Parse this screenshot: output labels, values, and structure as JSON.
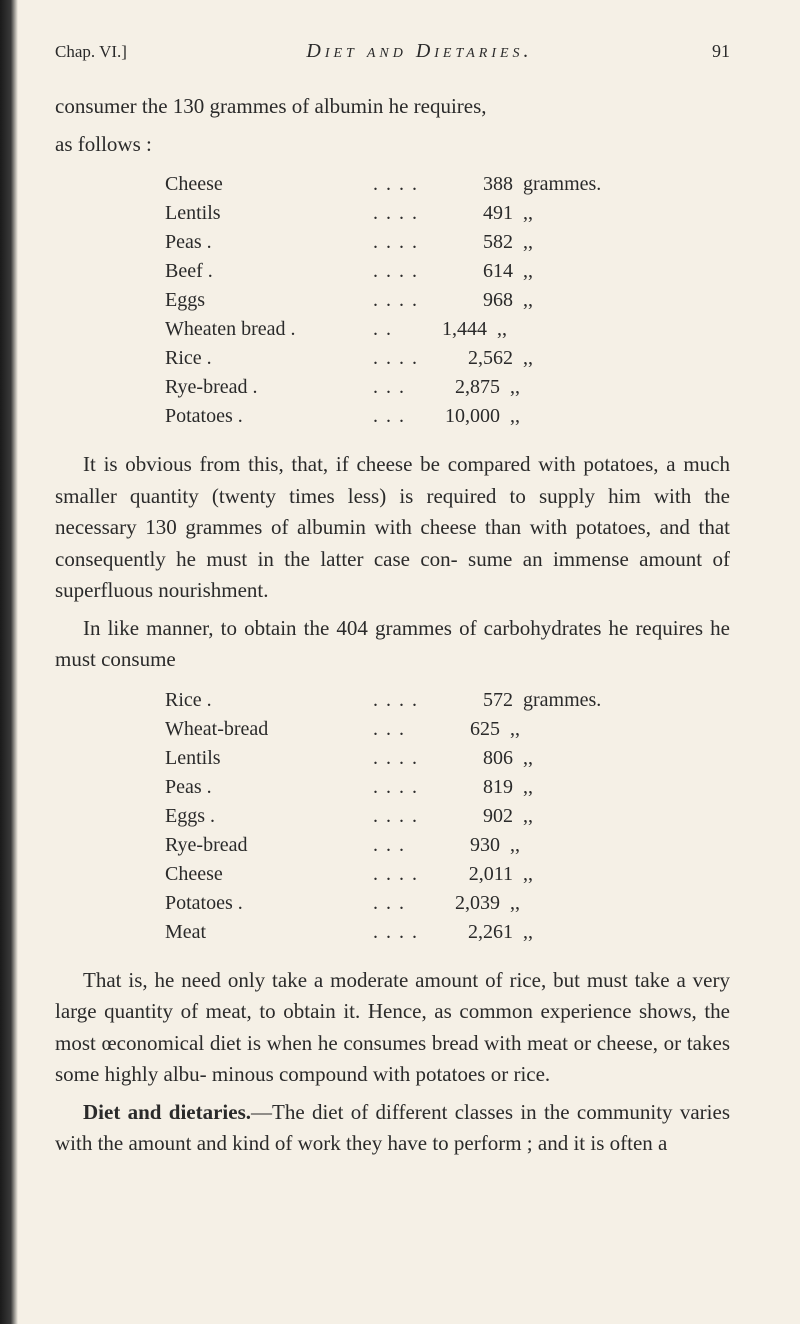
{
  "header": {
    "chapter": "Chap. VI.]",
    "title": "Diet and Dietaries.",
    "page": "91"
  },
  "para1a": "consumer the 130 grammes of albumin he requires,",
  "para1b": "as follows :",
  "table1": {
    "rows": [
      {
        "label": "Cheese",
        "dots": "....",
        "value": "388",
        "unit": "grammes."
      },
      {
        "label": "Lentils",
        "dots": "....",
        "value": "491",
        "unit": ",,"
      },
      {
        "label": "Peas .",
        "dots": "....",
        "value": "582",
        "unit": ",,"
      },
      {
        "label": "Beef .",
        "dots": "....",
        "value": "614",
        "unit": ",,"
      },
      {
        "label": "Eggs",
        "dots": "....",
        "value": "968",
        "unit": ",,"
      },
      {
        "label": "Wheaten bread .",
        "dots": "..",
        "value": "1,444",
        "unit": ",,"
      },
      {
        "label": "Rice .",
        "dots": "....",
        "value": "2,562",
        "unit": ",,"
      },
      {
        "label": "Rye-bread .",
        "dots": "...",
        "value": "2,875",
        "unit": ",,"
      },
      {
        "label": "Potatoes .",
        "dots": "...",
        "value": "10,000",
        "unit": ",,"
      }
    ]
  },
  "para2": "It is obvious from this, that, if cheese be compared with potatoes, a much smaller quantity (twenty times less) is required to supply him with the necessary 130 grammes of albumin with cheese than with potatoes, and that consequently he must in the latter case con- sume an immense amount of superfluous nourishment.",
  "para3": "In like manner, to obtain the 404 grammes of carbohydrates he requires he must consume",
  "table2": {
    "rows": [
      {
        "label": "Rice .",
        "dots": "....",
        "value": "572",
        "unit": "grammes."
      },
      {
        "label": "Wheat-bread",
        "dots": "...",
        "value": "625",
        "unit": ",,"
      },
      {
        "label": "Lentils",
        "dots": "....",
        "value": "806",
        "unit": ",,"
      },
      {
        "label": "Peas .",
        "dots": "....",
        "value": "819",
        "unit": ",,"
      },
      {
        "label": "Eggs .",
        "dots": "....",
        "value": "902",
        "unit": ",,"
      },
      {
        "label": "Rye-bread",
        "dots": "...",
        "value": "930",
        "unit": ",,"
      },
      {
        "label": "Cheese",
        "dots": "....",
        "value": "2,011",
        "unit": ",,"
      },
      {
        "label": "Potatoes .",
        "dots": "...",
        "value": "2,039",
        "unit": ",,"
      },
      {
        "label": "Meat",
        "dots": "....",
        "value": "2,261",
        "unit": ",,"
      }
    ]
  },
  "para4": "That is, he need only take a moderate amount of rice, but must take a very large quantity of meat, to obtain it. Hence, as common experience shows, the most œconomical diet is when he consumes bread with meat or cheese, or takes some highly albu- minous compound with potatoes or rice.",
  "para5_bold": "Diet and dietaries.",
  "para5_rest": "—The diet of different classes in the community varies with the amount and kind of work they have to perform ; and it is often a"
}
